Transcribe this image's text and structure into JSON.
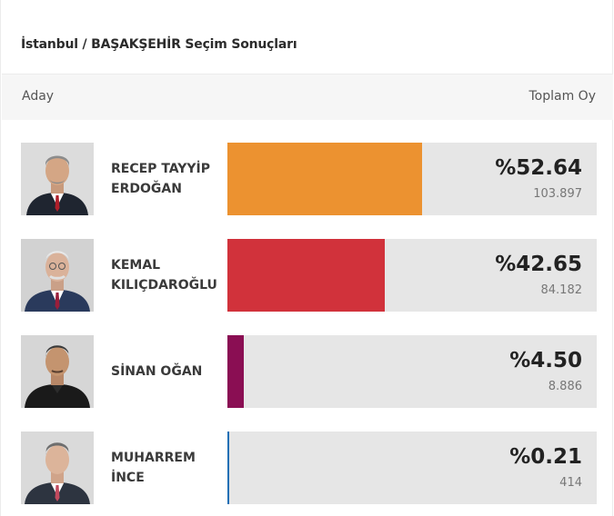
{
  "title": "İstanbul / BAŞAKŞEHİR Seçim Sonuçları",
  "header": {
    "left": "Aday",
    "right": "Toplam Oy"
  },
  "candidates": [
    {
      "name_line1": "RECEP TAYYİP",
      "name_line2": "ERDOĞAN",
      "percent_label": "%52.64",
      "percent": 52.64,
      "votes": "103.897",
      "color": "#ec9230"
    },
    {
      "name_line1": "KEMAL",
      "name_line2": "KILIÇDAROĞLU",
      "percent_label": "%42.65",
      "percent": 42.65,
      "votes": "84.182",
      "color": "#d1323b"
    },
    {
      "name_line1": "SİNAN OĞAN",
      "name_line2": "",
      "percent_label": "%4.50",
      "percent": 4.5,
      "votes": "8.886",
      "color": "#8a0e53"
    },
    {
      "name_line1": "MUHARREM",
      "name_line2": "İNCE",
      "percent_label": "%0.21",
      "percent": 0.21,
      "votes": "414",
      "color": "#1c6fb5"
    }
  ]
}
